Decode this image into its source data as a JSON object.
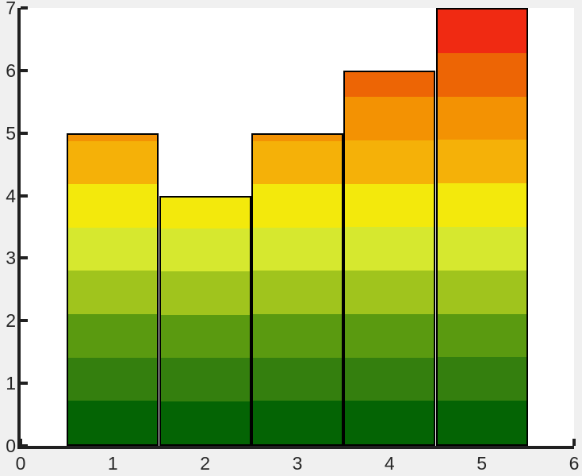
{
  "figure": {
    "background_color": "#f0f0f0",
    "plot_background_color": "#ffffff",
    "axis_color": "#202020",
    "tick_label_color": "#262626",
    "bar_edge_color": "#000000"
  },
  "chart_data": {
    "type": "bar",
    "x": [
      1,
      2,
      3,
      4,
      5
    ],
    "values": [
      5,
      4,
      5,
      6,
      7
    ],
    "bar_width": 1,
    "bar_gap": 0,
    "xlim": [
      0,
      6
    ],
    "ylim": [
      0,
      7
    ],
    "x_tick_labels": [
      "0",
      "1",
      "2",
      "3",
      "4",
      "5",
      "6"
    ],
    "y_tick_labels": [
      "0",
      "1",
      "2",
      "3",
      "4",
      "5",
      "6",
      "7"
    ],
    "x_ticks": [
      0,
      1,
      2,
      3,
      4,
      5,
      6
    ],
    "y_ticks": [
      0,
      1,
      2,
      3,
      4,
      5,
      6,
      7
    ],
    "title": "",
    "xlabel": "",
    "ylabel": "",
    "grid": false,
    "legend": null,
    "colormap": {
      "description": "horizontal color bands by y-value, bottom to top",
      "band_height": 0.7,
      "colors_bottom_to_top": [
        "#046404",
        "#347f0e",
        "#5a9a10",
        "#a0c41d",
        "#d6e82f",
        "#f3e90c",
        "#f5b108",
        "#f39203",
        "#ed6505",
        "#f02a12"
      ]
    }
  }
}
